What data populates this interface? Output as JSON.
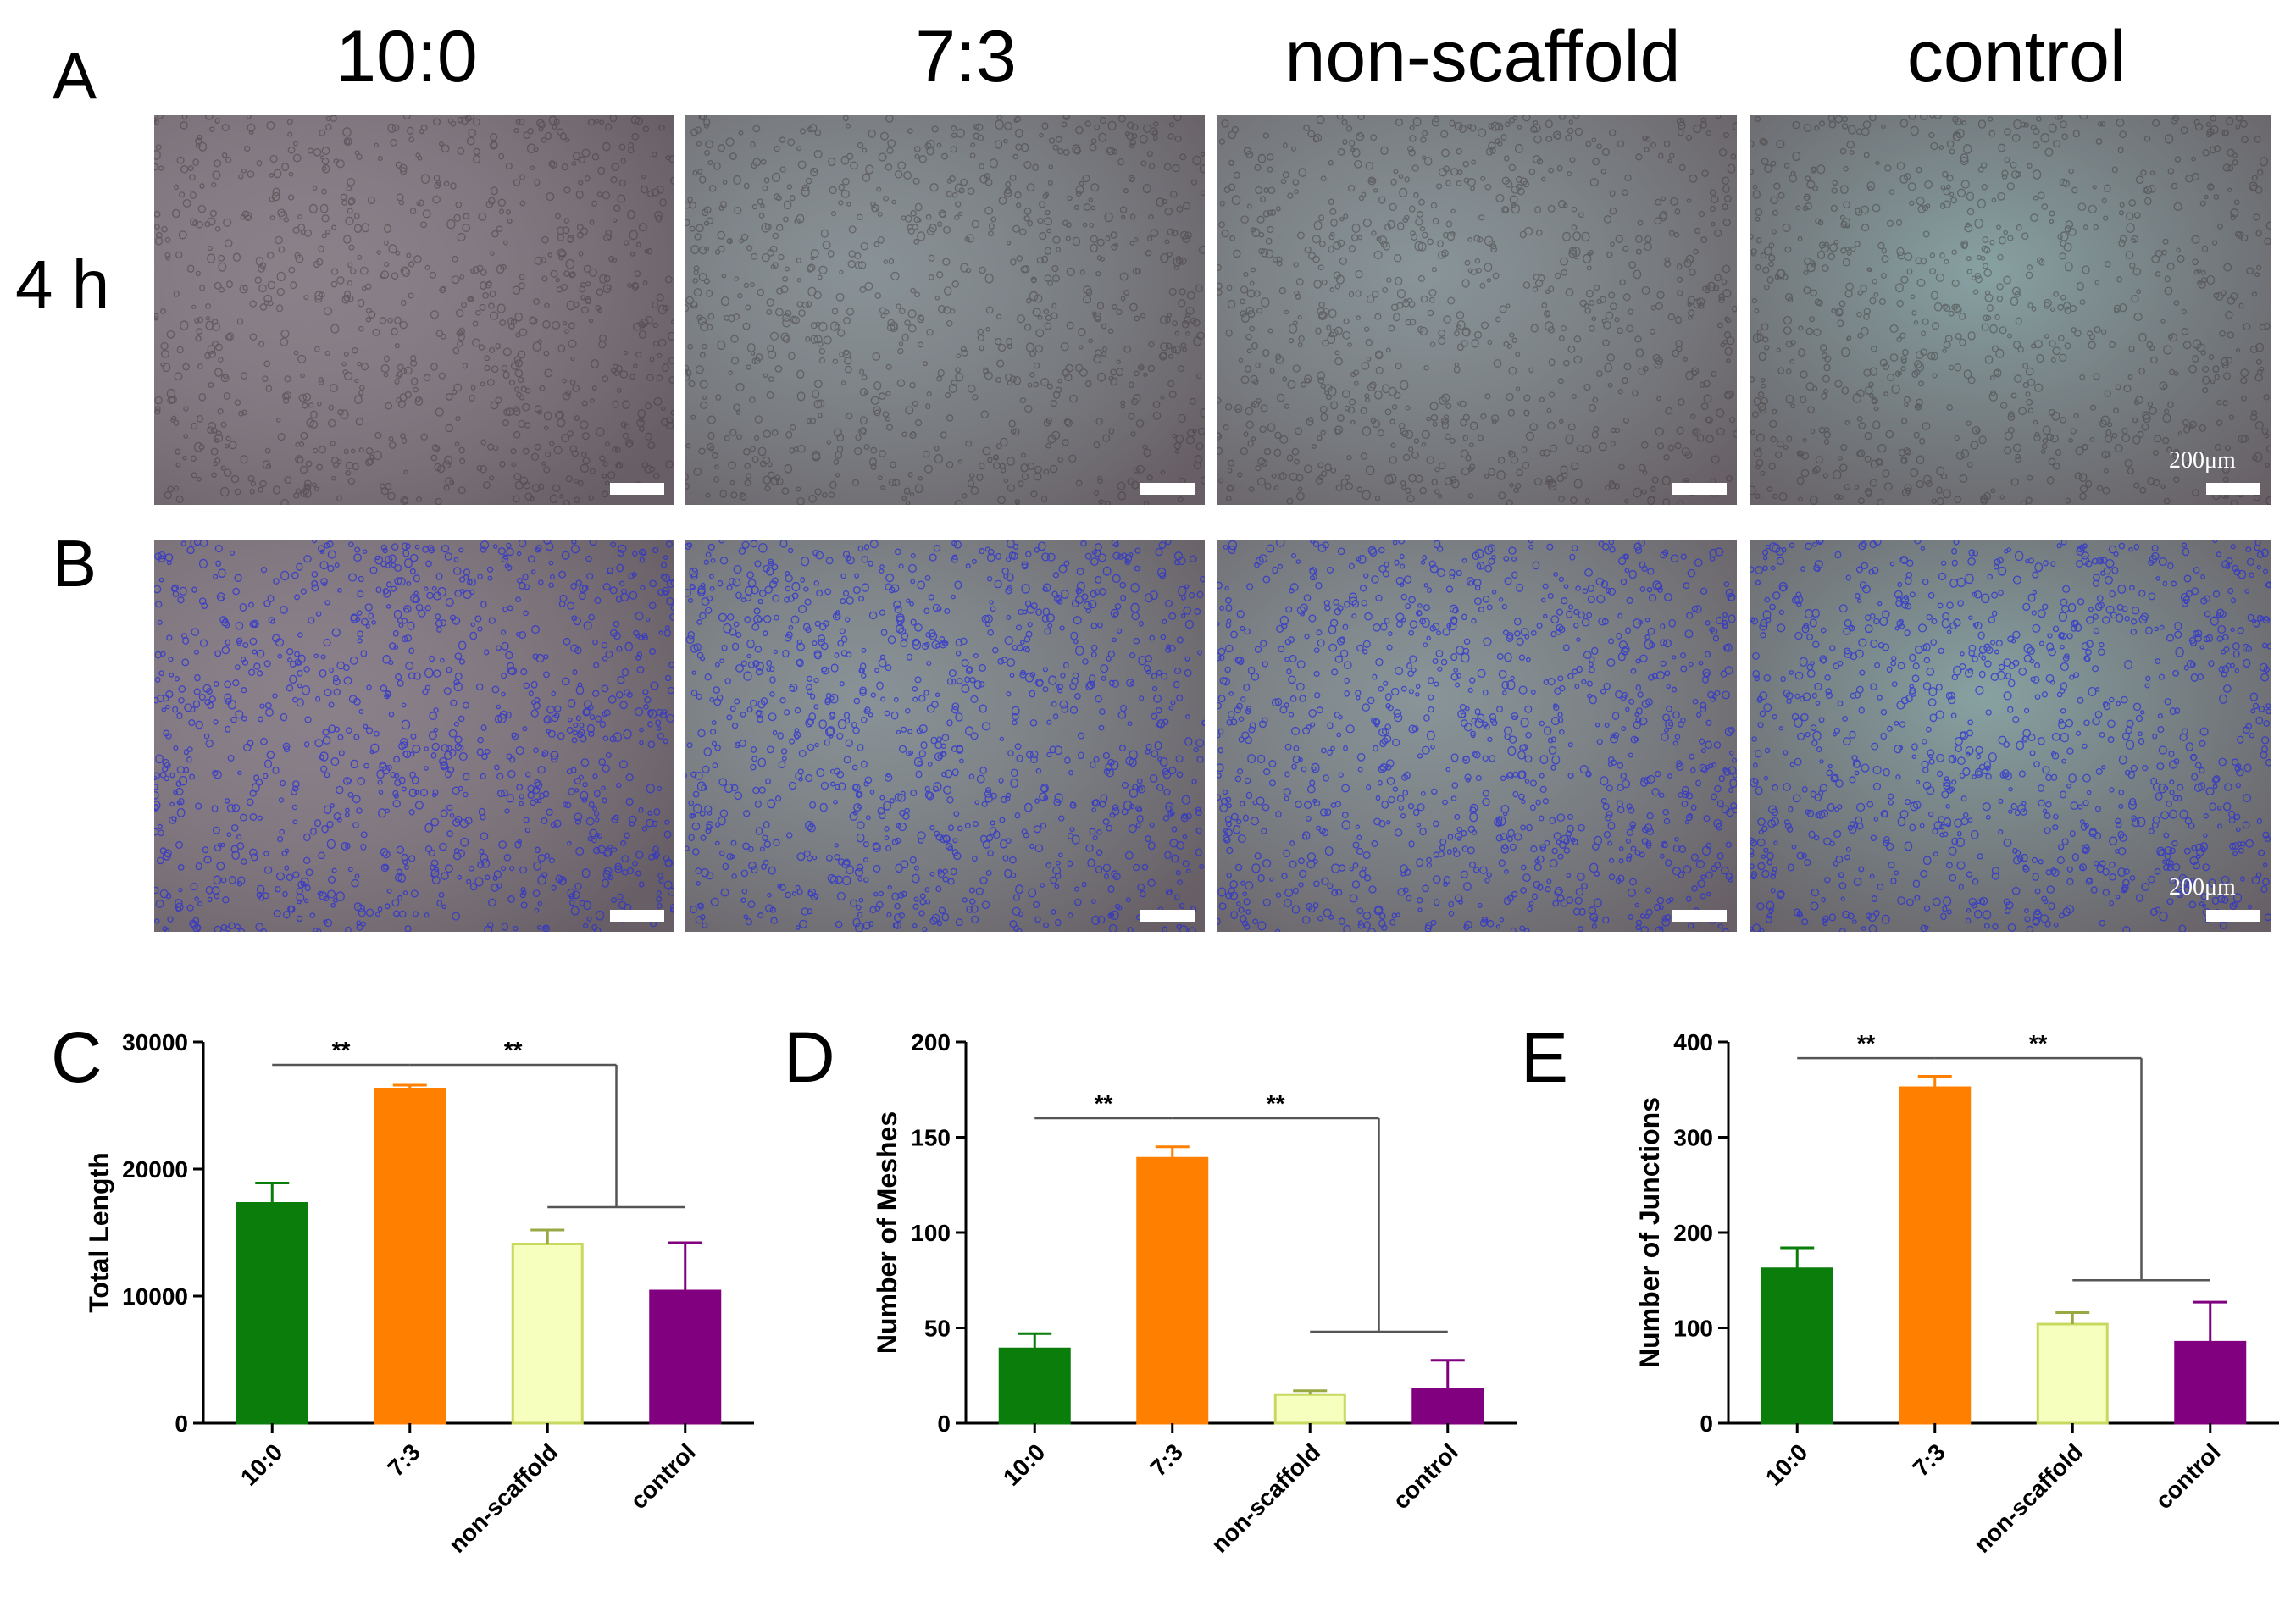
{
  "figure": {
    "column_headers": [
      "10:0",
      "7:3",
      "non-scaffold",
      "control"
    ],
    "row_A": {
      "letter": "A",
      "label": "4 h"
    },
    "row_B": {
      "letter": "B"
    },
    "scale_bar_label": "200μm",
    "colors": {
      "tint_lilac": "#8e8290",
      "tint_teal": "#86b4b0",
      "overlay_blue": "#2a2fd6"
    }
  },
  "chart_data": [
    {
      "panel": "C",
      "type": "bar",
      "categories": [
        "10:0",
        "7:3",
        "non-scaffold",
        "control"
      ],
      "values": [
        17300,
        26300,
        14100,
        10400
      ],
      "errors": [
        1600,
        300,
        1100,
        3800
      ],
      "colors": [
        "#0a7d0a",
        "#ff8000",
        "#f6ffbe",
        "#800080"
      ],
      "edge_colors": [
        "#0a7d0a",
        "#ff8000",
        "#c8d860",
        "#800080"
      ],
      "ylabel": "Total Length",
      "ylim": [
        0,
        30000
      ],
      "yticks": [
        0,
        10000,
        20000,
        30000
      ],
      "significance": [
        {
          "label": "**",
          "type": "pair",
          "from": 0,
          "to": 1,
          "level": 28200
        },
        {
          "label": "**",
          "type": "group",
          "from": 1,
          "to_group": [
            2,
            3
          ],
          "level": 28200,
          "drop": 17000
        }
      ]
    },
    {
      "panel": "D",
      "type": "bar",
      "categories": [
        "10:0",
        "7:3",
        "non-scaffold",
        "control"
      ],
      "values": [
        39,
        139,
        15,
        18
      ],
      "errors": [
        8,
        6,
        2,
        15
      ],
      "colors": [
        "#0a7d0a",
        "#ff8000",
        "#f6ffbe",
        "#800080"
      ],
      "edge_colors": [
        "#0a7d0a",
        "#ff8000",
        "#c8d860",
        "#800080"
      ],
      "ylabel": "Number of Meshes",
      "ylim": [
        0,
        200
      ],
      "yticks": [
        0,
        50,
        100,
        150,
        200
      ],
      "significance": [
        {
          "label": "**",
          "type": "pair",
          "from": 0,
          "to": 1,
          "level": 160
        },
        {
          "label": "**",
          "type": "group",
          "from": 1,
          "to_group": [
            2,
            3
          ],
          "level": 160,
          "drop": 48
        }
      ]
    },
    {
      "panel": "E",
      "type": "bar",
      "categories": [
        "10:0",
        "7:3",
        "non-scaffold",
        "control"
      ],
      "values": [
        162,
        352,
        104,
        85
      ],
      "errors": [
        22,
        12,
        12,
        42
      ],
      "colors": [
        "#0a7d0a",
        "#ff8000",
        "#f6ffbe",
        "#800080"
      ],
      "edge_colors": [
        "#0a7d0a",
        "#ff8000",
        "#c8d860",
        "#800080"
      ],
      "ylabel": "Number of Junctions",
      "ylim": [
        0,
        400
      ],
      "yticks": [
        0,
        100,
        200,
        300,
        400
      ],
      "significance": [
        {
          "label": "**",
          "type": "pair",
          "from": 0,
          "to": 1,
          "level": 383
        },
        {
          "label": "**",
          "type": "group",
          "from": 1,
          "to_group": [
            2,
            3
          ],
          "level": 383,
          "drop": 150
        }
      ]
    }
  ]
}
